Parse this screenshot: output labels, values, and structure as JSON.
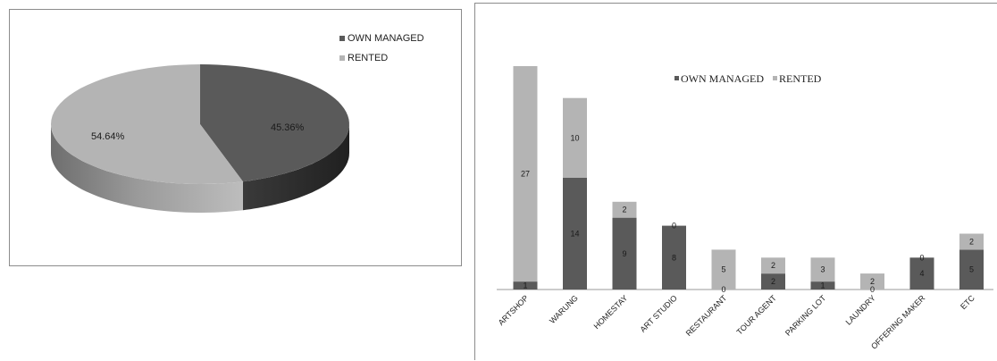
{
  "chart_data": [
    {
      "type": "pie",
      "categories": [
        "OWN MANAGED",
        "RENTED"
      ],
      "values": [
        45.36,
        54.64
      ],
      "data_labels": [
        "45.36%",
        "54.64%"
      ],
      "legend": {
        "position": "top-right",
        "entries": [
          "OWN MANAGED",
          "RENTED"
        ]
      },
      "colors": {
        "OWN MANAGED": "#5a5a5a",
        "RENTED": "#b4b4b4"
      },
      "style": "3d"
    },
    {
      "type": "bar",
      "stacked": true,
      "categories": [
        "ARTSHOP",
        "WARUNG",
        "HOMESTAY",
        "ART STUDIO",
        "RESTAURANT",
        "TOUR AGENT",
        "PARKING LOT",
        "LAUNDRY",
        "OFFERING MAKER",
        "ETC"
      ],
      "series": [
        {
          "name": "OWN MANAGED",
          "values": [
            1,
            14,
            9,
            8,
            0,
            2,
            1,
            0,
            4,
            5
          ],
          "color": "#5a5a5a"
        },
        {
          "name": "RENTED",
          "values": [
            27,
            10,
            2,
            0,
            5,
            2,
            3,
            2,
            0,
            2
          ],
          "color": "#b4b4b4"
        }
      ],
      "ylim": [
        0,
        28
      ],
      "legend": {
        "position": "top-center",
        "entries": [
          "OWN MANAGED",
          "RENTED"
        ]
      },
      "grid": false
    }
  ]
}
